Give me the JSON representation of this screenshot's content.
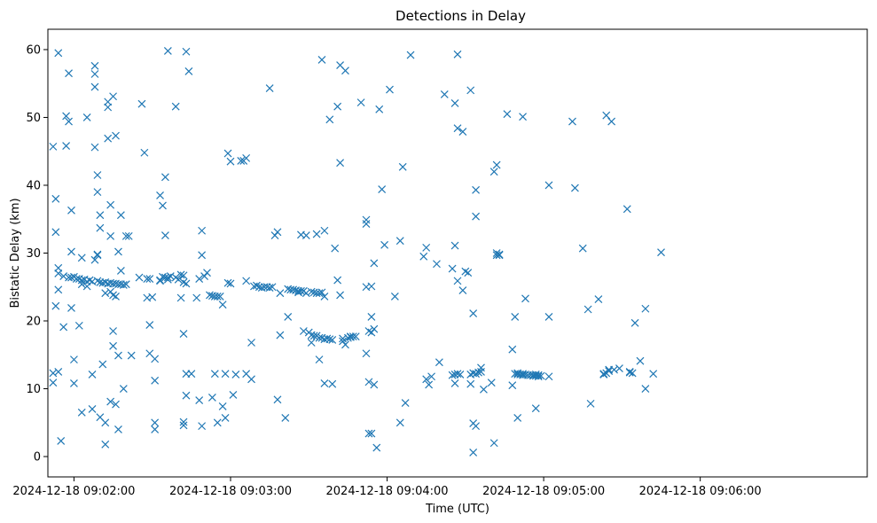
{
  "chart_data": {
    "type": "scatter",
    "title": "Detections in Delay",
    "xlabel": "Time (UTC)",
    "ylabel": "Bistatic Delay (km)",
    "marker": "x",
    "color": "#1f77b4",
    "grid": false,
    "x_unit": "seconds after 2024-12-18 09:00:00 UTC",
    "xlim": [
      110,
      424
    ],
    "ylim": [
      -3,
      63
    ],
    "xticks": [
      {
        "value": 120,
        "label": "2024-12-18 09:02:00"
      },
      {
        "value": 180,
        "label": "2024-12-18 09:03:00"
      },
      {
        "value": 240,
        "label": "2024-12-18 09:04:00"
      },
      {
        "value": 300,
        "label": "2024-12-18 09:05:00"
      },
      {
        "value": 360,
        "label": "2024-12-18 09:06:00"
      }
    ],
    "yticks": [
      0,
      10,
      20,
      30,
      40,
      50,
      60
    ],
    "points": [
      [
        112,
        45.7
      ],
      [
        112,
        12.3
      ],
      [
        112,
        10.9
      ],
      [
        113,
        33.1
      ],
      [
        113,
        22.2
      ],
      [
        113,
        38.0
      ],
      [
        114,
        59.5
      ],
      [
        114,
        27.0
      ],
      [
        114,
        24.6
      ],
      [
        114,
        12.5
      ],
      [
        114,
        27.8
      ],
      [
        115,
        2.3
      ],
      [
        116,
        26.6
      ],
      [
        116,
        19.1
      ],
      [
        117,
        45.8
      ],
      [
        117,
        50.2
      ],
      [
        118,
        26.4
      ],
      [
        118,
        49.4
      ],
      [
        118,
        56.5
      ],
      [
        119,
        26.4
      ],
      [
        119,
        36.3
      ],
      [
        119,
        30.2
      ],
      [
        119,
        21.9
      ],
      [
        120,
        26.5
      ],
      [
        120,
        14.3
      ],
      [
        120,
        10.8
      ],
      [
        121,
        26.2
      ],
      [
        122,
        26.2
      ],
      [
        122,
        19.3
      ],
      [
        123,
        26.0
      ],
      [
        123,
        6.5
      ],
      [
        123,
        25.4
      ],
      [
        123,
        29.3
      ],
      [
        124,
        26.1
      ],
      [
        125,
        25.8
      ],
      [
        125,
        25.1
      ],
      [
        125,
        50.0
      ],
      [
        126,
        26.0
      ],
      [
        127,
        25.8
      ],
      [
        127,
        7.0
      ],
      [
        127,
        12.1
      ],
      [
        128,
        45.6
      ],
      [
        128,
        29.0
      ],
      [
        128,
        54.5
      ],
      [
        128,
        56.4
      ],
      [
        128,
        57.6
      ],
      [
        129,
        25.9
      ],
      [
        129,
        29.7
      ],
      [
        129,
        29.8
      ],
      [
        129,
        39.0
      ],
      [
        129,
        41.5
      ],
      [
        130,
        25.7
      ],
      [
        130,
        35.6
      ],
      [
        130,
        33.7
      ],
      [
        130,
        5.8
      ],
      [
        131,
        25.6
      ],
      [
        131,
        13.6
      ],
      [
        132,
        25.7
      ],
      [
        132,
        24.1
      ],
      [
        132,
        5.0
      ],
      [
        132,
        1.8
      ],
      [
        133,
        25.5
      ],
      [
        133,
        51.5
      ],
      [
        133,
        46.9
      ],
      [
        133,
        52.3
      ],
      [
        134,
        25.6
      ],
      [
        134,
        24.3
      ],
      [
        134,
        8.1
      ],
      [
        134,
        32.5
      ],
      [
        134,
        37.1
      ],
      [
        135,
        25.5
      ],
      [
        135,
        18.5
      ],
      [
        135,
        16.3
      ],
      [
        135,
        23.8
      ],
      [
        135,
        53.1
      ],
      [
        136,
        25.5
      ],
      [
        136,
        23.6
      ],
      [
        136,
        47.3
      ],
      [
        136,
        7.7
      ],
      [
        137,
        25.4
      ],
      [
        137,
        14.9
      ],
      [
        137,
        30.2
      ],
      [
        137,
        4.0
      ],
      [
        138,
        25.4
      ],
      [
        138,
        35.6
      ],
      [
        138,
        27.4
      ],
      [
        139,
        10.0
      ],
      [
        139,
        25.3
      ],
      [
        140,
        32.5
      ],
      [
        140,
        25.4
      ],
      [
        141,
        32.5
      ],
      [
        142,
        14.9
      ],
      [
        145,
        26.4
      ],
      [
        146,
        52.0
      ],
      [
        147,
        44.8
      ],
      [
        148,
        26.2
      ],
      [
        148,
        23.4
      ],
      [
        149,
        26.2
      ],
      [
        149,
        19.4
      ],
      [
        149,
        15.2
      ],
      [
        150,
        23.5
      ],
      [
        151,
        14.4
      ],
      [
        151,
        11.2
      ],
      [
        151,
        4.0
      ],
      [
        151,
        5.0
      ],
      [
        153,
        26.0
      ],
      [
        153,
        25.9
      ],
      [
        153,
        38.5
      ],
      [
        154,
        37.0
      ],
      [
        154,
        26.5
      ],
      [
        155,
        26.4
      ],
      [
        155,
        32.6
      ],
      [
        155,
        41.2
      ],
      [
        156,
        26.1
      ],
      [
        156,
        59.8
      ],
      [
        156,
        26.4
      ],
      [
        157,
        26.6
      ],
      [
        159,
        51.6
      ],
      [
        159,
        26.4
      ],
      [
        160,
        26.1
      ],
      [
        161,
        26.8
      ],
      [
        161,
        23.4
      ],
      [
        162,
        18.1
      ],
      [
        162,
        26.7
      ],
      [
        162,
        5.1
      ],
      [
        162,
        4.6
      ],
      [
        162,
        25.7
      ],
      [
        163,
        25.5
      ],
      [
        163,
        9.0
      ],
      [
        163,
        12.2
      ],
      [
        163,
        59.7
      ],
      [
        164,
        56.8
      ],
      [
        165,
        12.2
      ],
      [
        167,
        23.4
      ],
      [
        168,
        26.2
      ],
      [
        168,
        8.3
      ],
      [
        169,
        4.5
      ],
      [
        169,
        33.3
      ],
      [
        169,
        29.7
      ],
      [
        170,
        26.6
      ],
      [
        171,
        27.1
      ],
      [
        172,
        23.8
      ],
      [
        173,
        23.7
      ],
      [
        173,
        8.7
      ],
      [
        174,
        23.6
      ],
      [
        174,
        12.2
      ],
      [
        175,
        23.6
      ],
      [
        175,
        5.0
      ],
      [
        176,
        23.6
      ],
      [
        177,
        22.4
      ],
      [
        177,
        7.4
      ],
      [
        178,
        5.7
      ],
      [
        178,
        12.2
      ],
      [
        179,
        25.6
      ],
      [
        179,
        44.7
      ],
      [
        180,
        25.5
      ],
      [
        180,
        43.5
      ],
      [
        181,
        9.1
      ],
      [
        182,
        12.1
      ],
      [
        184,
        43.6
      ],
      [
        185,
        43.6
      ],
      [
        186,
        12.2
      ],
      [
        186,
        25.9
      ],
      [
        186,
        44.0
      ],
      [
        188,
        11.4
      ],
      [
        188,
        16.8
      ],
      [
        189,
        25.1
      ],
      [
        190,
        25.2
      ],
      [
        191,
        25.0
      ],
      [
        192,
        24.9
      ],
      [
        193,
        25.0
      ],
      [
        194,
        25.0
      ],
      [
        195,
        24.9
      ],
      [
        195,
        54.3
      ],
      [
        196,
        25.0
      ],
      [
        197,
        32.6
      ],
      [
        198,
        8.4
      ],
      [
        198,
        33.1
      ],
      [
        199,
        17.9
      ],
      [
        199,
        24.1
      ],
      [
        201,
        5.7
      ],
      [
        202,
        24.7
      ],
      [
        202,
        20.6
      ],
      [
        203,
        24.6
      ],
      [
        204,
        24.6
      ],
      [
        205,
        24.5
      ],
      [
        206,
        24.4
      ],
      [
        206,
        24.2
      ],
      [
        207,
        32.7
      ],
      [
        207,
        24.4
      ],
      [
        208,
        24.4
      ],
      [
        208,
        18.5
      ],
      [
        209,
        32.6
      ],
      [
        209,
        24.1
      ],
      [
        210,
        18.3
      ],
      [
        211,
        16.8
      ],
      [
        211,
        24.3
      ],
      [
        211,
        17.9
      ],
      [
        212,
        24.2
      ],
      [
        212,
        17.8
      ],
      [
        213,
        32.8
      ],
      [
        213,
        24.1
      ],
      [
        213,
        17.8
      ],
      [
        214,
        24.1
      ],
      [
        214,
        17.5
      ],
      [
        214,
        14.3
      ],
      [
        215,
        58.5
      ],
      [
        215,
        24.2
      ],
      [
        215,
        17.5
      ],
      [
        216,
        33.3
      ],
      [
        216,
        23.6
      ],
      [
        216,
        17.3
      ],
      [
        216,
        10.8
      ],
      [
        217,
        17.4
      ],
      [
        218,
        17.3
      ],
      [
        218,
        49.7
      ],
      [
        219,
        10.7
      ],
      [
        219,
        17.2
      ],
      [
        220,
        30.7
      ],
      [
        221,
        26.0
      ],
      [
        221,
        51.6
      ],
      [
        222,
        43.3
      ],
      [
        222,
        57.7
      ],
      [
        222,
        23.8
      ],
      [
        223,
        17.4
      ],
      [
        223,
        17.0
      ],
      [
        224,
        56.9
      ],
      [
        224,
        16.5
      ],
      [
        225,
        17.5
      ],
      [
        226,
        17.7
      ],
      [
        226,
        17.6
      ],
      [
        227,
        17.7
      ],
      [
        228,
        17.7
      ],
      [
        230,
        52.2
      ],
      [
        232,
        34.9
      ],
      [
        232,
        34.3
      ],
      [
        232,
        25.0
      ],
      [
        232,
        15.2
      ],
      [
        233,
        11.0
      ],
      [
        233,
        18.5
      ],
      [
        233,
        3.4
      ],
      [
        234,
        25.1
      ],
      [
        234,
        3.4
      ],
      [
        234,
        18.3
      ],
      [
        234,
        20.6
      ],
      [
        235,
        18.8
      ],
      [
        235,
        10.6
      ],
      [
        235,
        28.5
      ],
      [
        236,
        1.3
      ],
      [
        237,
        51.2
      ],
      [
        238,
        39.4
      ],
      [
        239,
        31.2
      ],
      [
        241,
        54.1
      ],
      [
        243,
        23.6
      ],
      [
        245,
        31.8
      ],
      [
        245,
        5.0
      ],
      [
        246,
        42.7
      ],
      [
        247,
        7.9
      ],
      [
        249,
        59.2
      ],
      [
        254,
        29.5
      ],
      [
        255,
        30.8
      ],
      [
        255,
        11.4
      ],
      [
        256,
        10.6
      ],
      [
        257,
        11.8
      ],
      [
        259,
        28.4
      ],
      [
        260,
        13.9
      ],
      [
        262,
        53.4
      ],
      [
        265,
        27.7
      ],
      [
        265,
        12.0
      ],
      [
        266,
        31.1
      ],
      [
        266,
        12.1
      ],
      [
        266,
        10.8
      ],
      [
        266,
        52.1
      ],
      [
        267,
        12.2
      ],
      [
        267,
        25.9
      ],
      [
        267,
        48.4
      ],
      [
        267,
        59.3
      ],
      [
        268,
        12.1
      ],
      [
        269,
        47.9
      ],
      [
        269,
        24.5
      ],
      [
        270,
        27.3
      ],
      [
        271,
        27.1
      ],
      [
        272,
        10.7
      ],
      [
        272,
        54.0
      ],
      [
        272,
        12.1
      ],
      [
        273,
        21.1
      ],
      [
        273,
        12.3
      ],
      [
        273,
        4.9
      ],
      [
        273,
        0.6
      ],
      [
        274,
        39.3
      ],
      [
        274,
        35.4
      ],
      [
        274,
        12.2
      ],
      [
        274,
        4.5
      ],
      [
        275,
        12.4
      ],
      [
        276,
        12.5
      ],
      [
        276,
        13.1
      ],
      [
        277,
        9.9
      ],
      [
        280,
        10.9
      ],
      [
        281,
        42.0
      ],
      [
        281,
        2.0
      ],
      [
        282,
        30.0
      ],
      [
        282,
        29.7
      ],
      [
        282,
        43.0
      ],
      [
        283,
        29.7
      ],
      [
        283,
        29.8
      ],
      [
        286,
        50.5
      ],
      [
        288,
        10.5
      ],
      [
        288,
        15.8
      ],
      [
        289,
        12.2
      ],
      [
        289,
        20.6
      ],
      [
        290,
        12.1
      ],
      [
        290,
        5.7
      ],
      [
        290,
        12.3
      ],
      [
        291,
        12.1
      ],
      [
        292,
        50.1
      ],
      [
        292,
        12.0
      ],
      [
        292,
        12.2
      ],
      [
        293,
        12.1
      ],
      [
        293,
        23.3
      ],
      [
        294,
        12.0
      ],
      [
        295,
        12.0
      ],
      [
        296,
        12.0
      ],
      [
        296,
        11.9
      ],
      [
        297,
        11.9
      ],
      [
        297,
        12.1
      ],
      [
        297,
        7.1
      ],
      [
        298,
        12.0
      ],
      [
        298,
        11.8
      ],
      [
        299,
        11.9
      ],
      [
        302,
        40.0
      ],
      [
        302,
        11.8
      ],
      [
        302,
        20.6
      ],
      [
        311,
        49.4
      ],
      [
        312,
        39.6
      ],
      [
        315,
        30.7
      ],
      [
        317,
        21.7
      ],
      [
        318,
        7.8
      ],
      [
        321,
        23.2
      ],
      [
        323,
        12.2
      ],
      [
        323,
        12.1
      ],
      [
        324,
        12.3
      ],
      [
        324,
        50.3
      ],
      [
        325,
        12.8
      ],
      [
        325,
        12.6
      ],
      [
        326,
        49.4
      ],
      [
        327,
        12.8
      ],
      [
        329,
        13.0
      ],
      [
        332,
        36.5
      ],
      [
        333,
        12.5
      ],
      [
        333,
        12.4
      ],
      [
        334,
        12.3
      ],
      [
        335,
        19.7
      ],
      [
        337,
        14.1
      ],
      [
        339,
        21.8
      ],
      [
        339,
        10.0
      ],
      [
        342,
        12.2
      ],
      [
        345,
        30.1
      ]
    ]
  }
}
